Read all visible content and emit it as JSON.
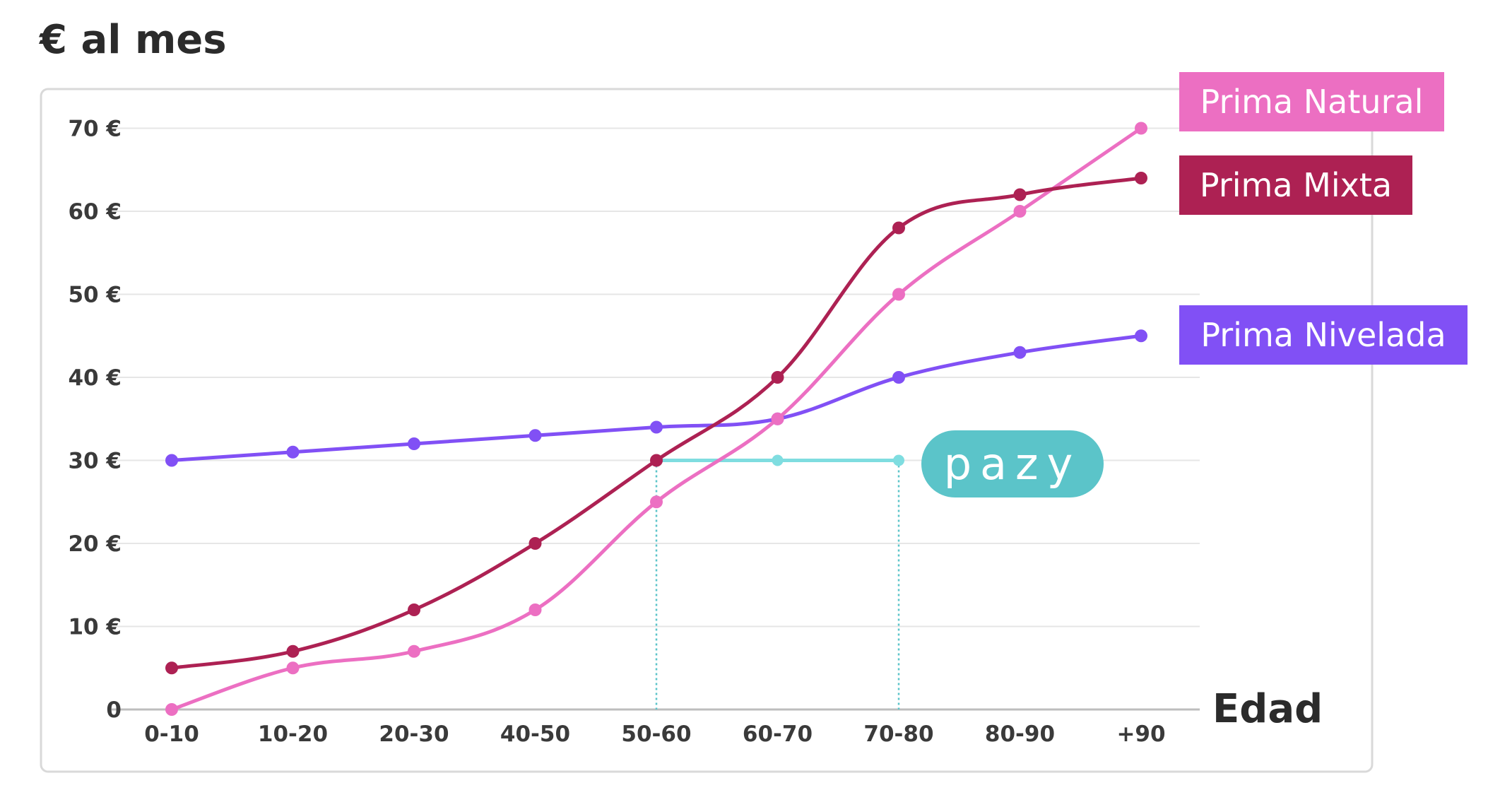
{
  "chart_data": {
    "type": "line",
    "title": "€ al mes",
    "xlabel": "Edad",
    "ylabel": "",
    "categories": [
      "0-10",
      "10-20",
      "20-30",
      "40-50",
      "50-60",
      "60-70",
      "70-80",
      "80-90",
      "+90"
    ],
    "ylim": [
      0,
      70
    ],
    "yticks": [
      {
        "value": 0,
        "label": "0"
      },
      {
        "value": 10,
        "label": "10 €"
      },
      {
        "value": 20,
        "label": "20 €"
      },
      {
        "value": 30,
        "label": "30 €"
      },
      {
        "value": 40,
        "label": "40 €"
      },
      {
        "value": 50,
        "label": "50 €"
      },
      {
        "value": 60,
        "label": "60 €"
      },
      {
        "value": 70,
        "label": "70 €"
      }
    ],
    "grid": "horizontal",
    "legend_placement": "right",
    "series": [
      {
        "name": "Prima Natural",
        "color": "#ec6fc2",
        "values": [
          0,
          5,
          7,
          12,
          25,
          35,
          50,
          60,
          70
        ]
      },
      {
        "name": "Prima Mixta",
        "color": "#ad2153",
        "values": [
          5,
          7,
          12,
          20,
          30,
          40,
          58,
          62,
          64
        ]
      },
      {
        "name": "Prima Nivelada",
        "color": "#8150f5",
        "values": [
          30,
          31,
          32,
          33,
          34,
          35,
          40,
          43,
          45
        ]
      }
    ],
    "annotation": {
      "label": "pazy",
      "color": "#5bc4c9",
      "line_color": "#7fdde0",
      "value": 30,
      "categories": [
        "50-60",
        "60-70",
        "70-80"
      ]
    }
  },
  "colors": {
    "grid": "#e6e6e6",
    "frame": "#d9d9d9",
    "axis": "#bdbdbd"
  }
}
